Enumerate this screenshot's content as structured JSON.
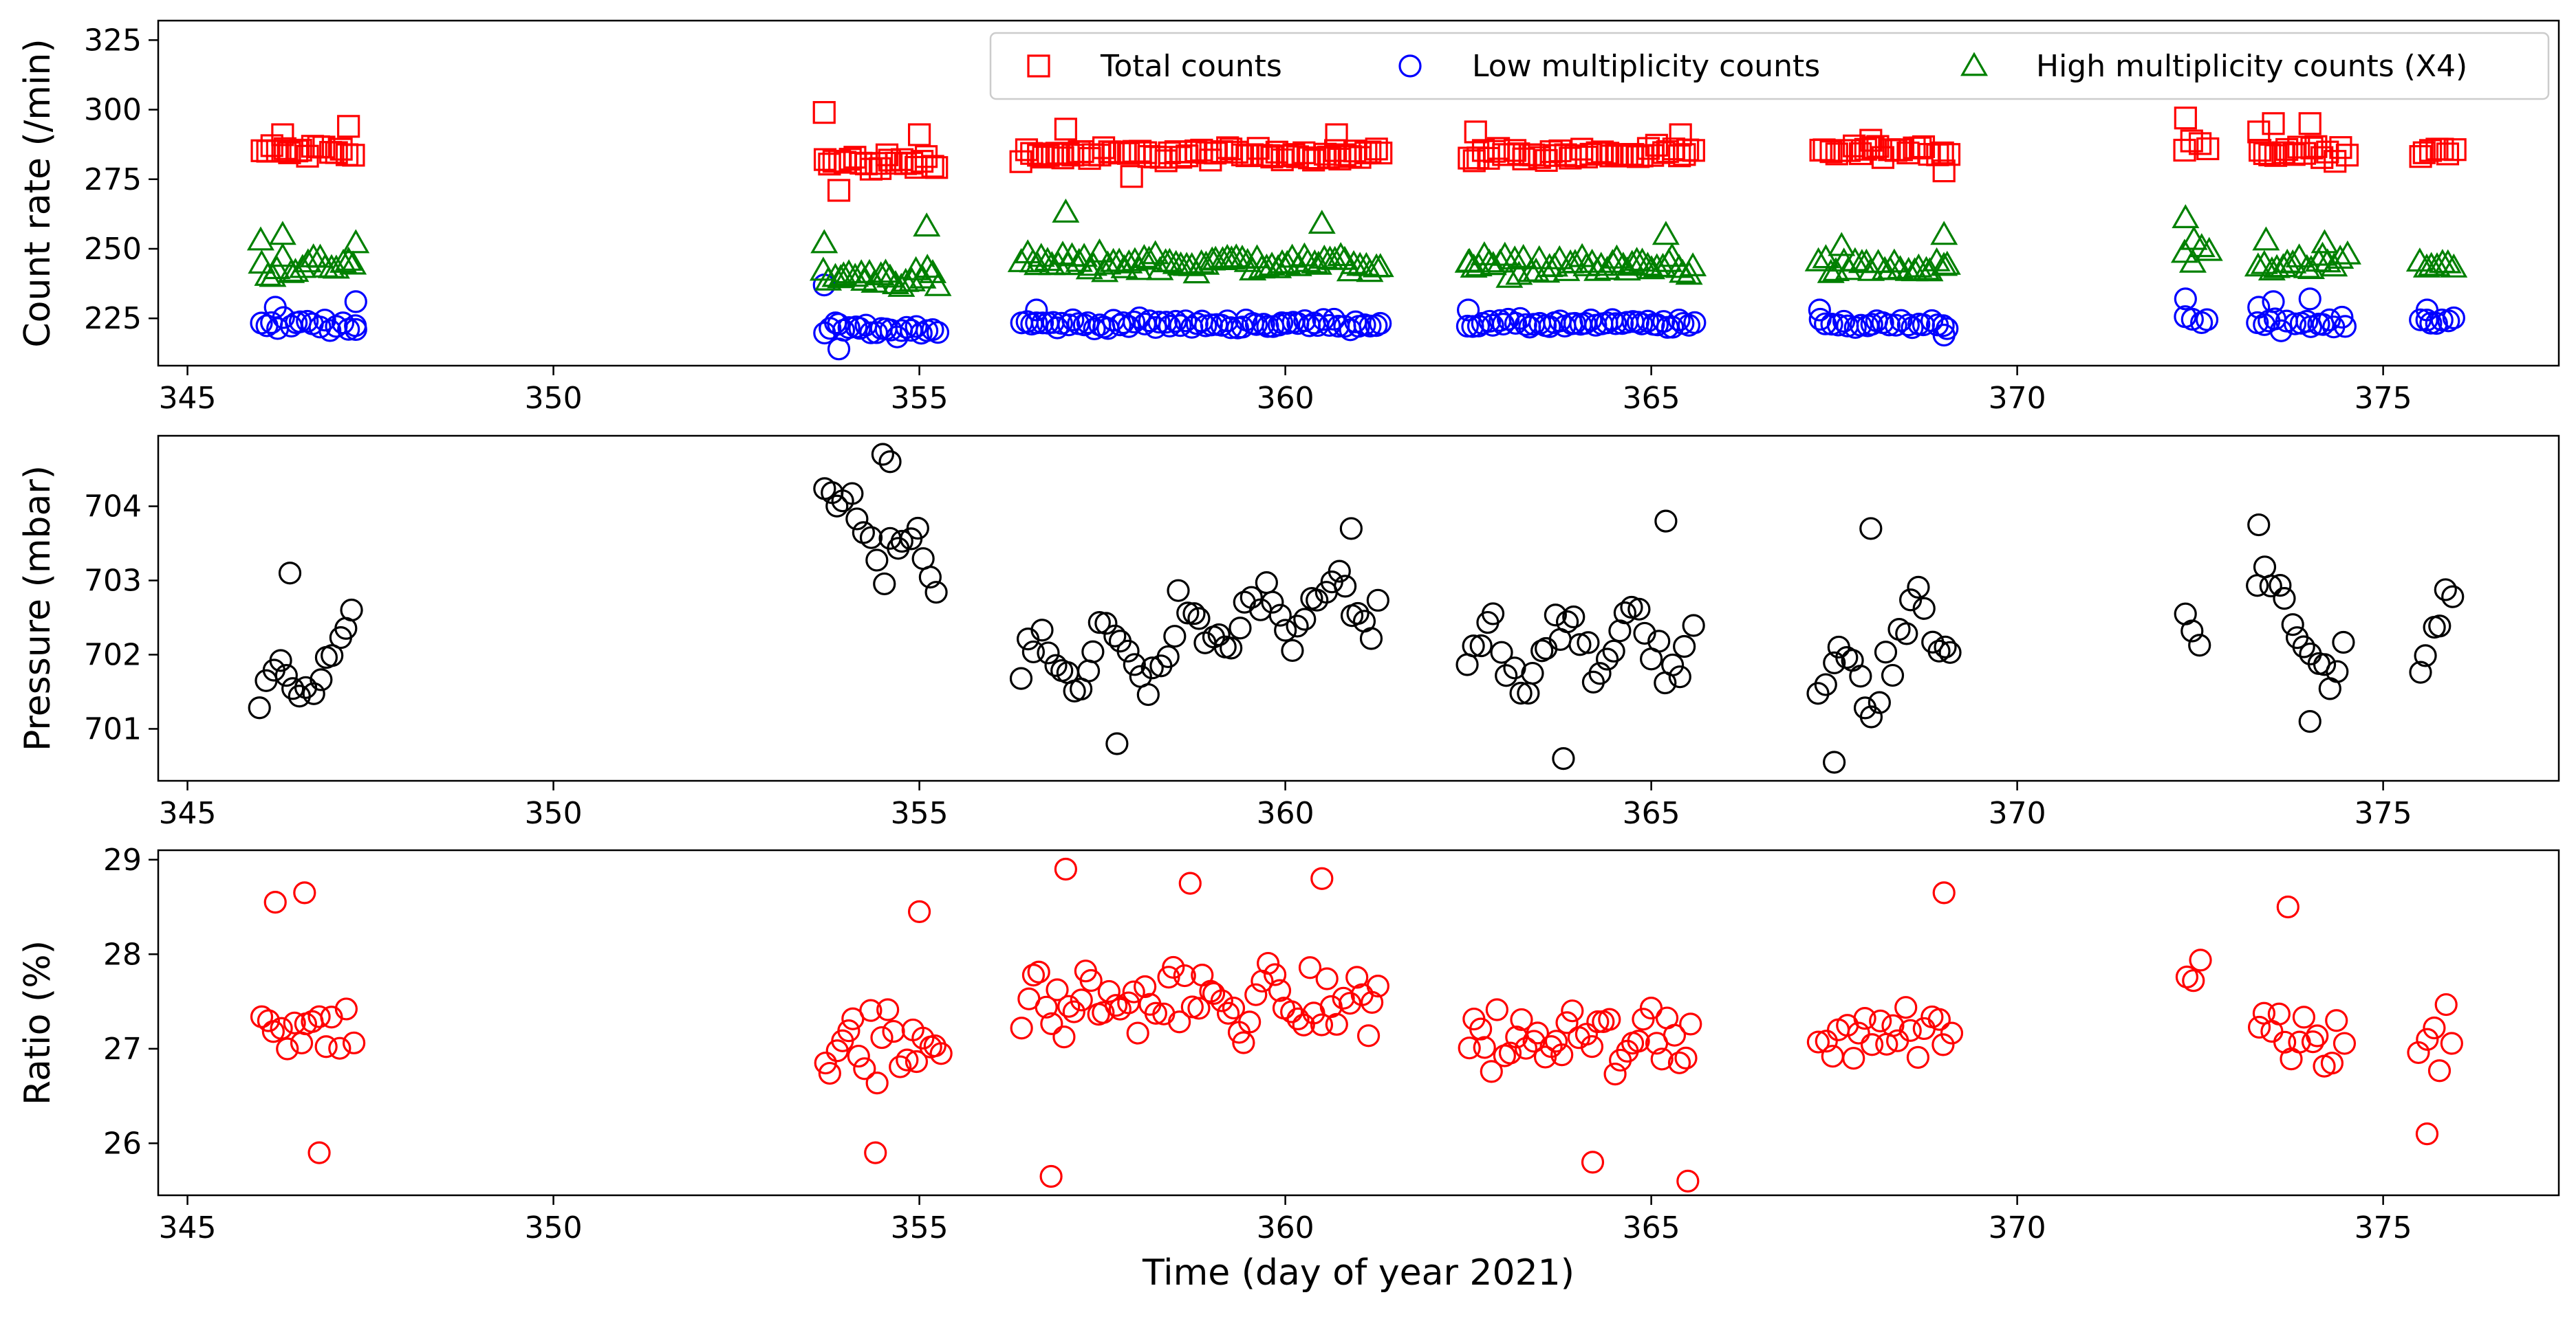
{
  "chart_data": [
    {
      "type": "scatter",
      "ylabel": "Count rate (/min)",
      "xlim": [
        344.6,
        377.4
      ],
      "ylim": [
        208,
        332
      ],
      "xticks": [
        345,
        350,
        355,
        360,
        365,
        370,
        375
      ],
      "yticks": [
        225,
        250,
        275,
        300,
        325
      ],
      "legend": [
        "Total counts",
        "Low multiplicity counts",
        "High multiplicity counts (X4)"
      ],
      "legend_position": "top-right",
      "gaps": [
        [
          347.4,
          353.6
        ],
        [
          369.2,
          372.1
        ]
      ],
      "series": [
        {
          "name": "Total counts",
          "marker": "square",
          "color": "#ff0000",
          "segments": [
            {
              "x": [
                346.0,
                347.3
              ],
              "mean": 285,
              "spread": 4,
              "step": 0.08
            },
            {
              "x": [
                353.7,
                355.3
              ],
              "mean": 281,
              "spread": 5,
              "step": 0.07
            },
            {
              "x": [
                356.4,
                361.3
              ],
              "mean": 284,
              "spread": 3.5,
              "step": 0.07
            },
            {
              "x": [
                362.5,
                365.6
              ],
              "mean": 284,
              "spread": 3.5,
              "step": 0.07
            },
            {
              "x": [
                367.3,
                369.1
              ],
              "mean": 285,
              "spread": 3,
              "step": 0.08
            },
            {
              "x": [
                372.3,
                372.6
              ],
              "mean": 288,
              "spread": 5,
              "step": 0.1
            },
            {
              "x": [
                373.3,
                374.5
              ],
              "mean": 285,
              "spread": 4,
              "step": 0.08
            },
            {
              "x": [
                375.5,
                376.0
              ],
              "mean": 285,
              "spread": 3,
              "step": 0.08
            }
          ],
          "extra_points": [
            [
              346.3,
              291
            ],
            [
              347.2,
              294
            ],
            [
              353.7,
              299
            ],
            [
              353.9,
              271
            ],
            [
              355.0,
              291
            ],
            [
              357.0,
              293
            ],
            [
              357.9,
              276
            ],
            [
              360.7,
              291
            ],
            [
              362.6,
              292
            ],
            [
              365.4,
              291
            ],
            [
              368.0,
              289
            ],
            [
              369.0,
              278
            ],
            [
              372.3,
              297
            ],
            [
              373.3,
              292
            ],
            [
              373.5,
              295
            ],
            [
              374.0,
              295
            ]
          ]
        },
        {
          "name": "Low multiplicity counts",
          "marker": "circle",
          "color": "#0000ff",
          "segments": [
            {
              "x": [
                346.0,
                347.3
              ],
              "mean": 223,
              "spread": 3,
              "step": 0.08
            },
            {
              "x": [
                353.7,
                355.3
              ],
              "mean": 221,
              "spread": 3.5,
              "step": 0.07
            },
            {
              "x": [
                356.4,
                361.3
              ],
              "mean": 223,
              "spread": 2.5,
              "step": 0.07
            },
            {
              "x": [
                362.5,
                365.6
              ],
              "mean": 223,
              "spread": 2.5,
              "step": 0.07
            },
            {
              "x": [
                367.3,
                369.1
              ],
              "mean": 223,
              "spread": 2.5,
              "step": 0.08
            },
            {
              "x": [
                372.3,
                372.6
              ],
              "mean": 225,
              "spread": 4,
              "step": 0.1
            },
            {
              "x": [
                373.3,
                374.5
              ],
              "mean": 223,
              "spread": 3.5,
              "step": 0.08
            },
            {
              "x": [
                375.5,
                376.0
              ],
              "mean": 224,
              "spread": 2.5,
              "step": 0.08
            }
          ],
          "extra_points": [
            [
              346.2,
              229
            ],
            [
              347.3,
              231
            ],
            [
              347.3,
              221
            ],
            [
              353.7,
              237
            ],
            [
              353.9,
              214
            ],
            [
              356.6,
              228
            ],
            [
              362.5,
              228
            ],
            [
              367.3,
              228
            ],
            [
              369.0,
              219
            ],
            [
              372.3,
              232
            ],
            [
              373.3,
              229
            ],
            [
              373.5,
              231
            ],
            [
              374.0,
              232
            ],
            [
              375.6,
              228
            ]
          ]
        },
        {
          "name": "High multiplicity counts (X4)",
          "marker": "triangle",
          "color": "#008000",
          "segments": [
            {
              "x": [
                346.0,
                347.3
              ],
              "mean": 244,
              "spread": 6,
              "step": 0.08
            },
            {
              "x": [
                353.7,
                355.3
              ],
              "mean": 240,
              "spread": 6,
              "step": 0.07
            },
            {
              "x": [
                356.4,
                361.3
              ],
              "mean": 245,
              "spread": 5.5,
              "step": 0.07
            },
            {
              "x": [
                362.5,
                365.6
              ],
              "mean": 244,
              "spread": 5.5,
              "step": 0.07
            },
            {
              "x": [
                367.3,
                369.1
              ],
              "mean": 243,
              "spread": 5,
              "step": 0.08
            },
            {
              "x": [
                372.3,
                372.6
              ],
              "mean": 250,
              "spread": 6,
              "step": 0.1
            },
            {
              "x": [
                373.3,
                374.5
              ],
              "mean": 244,
              "spread": 5.5,
              "step": 0.08
            },
            {
              "x": [
                375.5,
                376.0
              ],
              "mean": 243,
              "spread": 4,
              "step": 0.08
            }
          ],
          "extra_points": [
            [
              346.0,
              253
            ],
            [
              346.3,
              255
            ],
            [
              347.3,
              252
            ],
            [
              353.7,
              252
            ],
            [
              355.1,
              258
            ],
            [
              357.0,
              263
            ],
            [
              360.5,
              259
            ],
            [
              362.5,
              245
            ],
            [
              365.2,
              255
            ],
            [
              367.6,
              251
            ],
            [
              369.0,
              255
            ],
            [
              372.3,
              261
            ],
            [
              372.4,
              245
            ],
            [
              373.4,
              253
            ],
            [
              374.2,
              252
            ]
          ]
        }
      ]
    },
    {
      "type": "scatter",
      "ylabel": "Pressure (mbar)",
      "xlim": [
        344.6,
        377.4
      ],
      "ylim": [
        700.3,
        704.95
      ],
      "xticks": [
        345,
        350,
        355,
        360,
        365,
        370,
        375
      ],
      "yticks": [
        701,
        702,
        703,
        704
      ],
      "gaps": [
        [
          347.4,
          353.6
        ],
        [
          369.2,
          372.1
        ]
      ],
      "series": [
        {
          "name": "Pressure",
          "marker": "circle",
          "color": "#000000",
          "segments": [
            {
              "x": [
                346.0,
                347.3
              ],
              "y": [
                701.3,
                702.2
              ],
              "wave": 0.7,
              "step": 0.09
            },
            {
              "x": [
                353.7,
                355.3
              ],
              "y": [
                704.0,
                703.0
              ],
              "wave": 0.8,
              "step": 0.09
            },
            {
              "x": [
                356.4,
                361.3
              ],
              "y": [
                701.7,
                702.8
              ],
              "wave": 0.8,
              "step": 0.09
            },
            {
              "x": [
                362.5,
                365.6
              ],
              "y": [
                702.0,
                702.2
              ],
              "wave": 0.9,
              "step": 0.09
            },
            {
              "x": [
                367.3,
                369.1
              ],
              "y": [
                701.3,
                702.6
              ],
              "wave": 0.9,
              "step": 0.09
            },
            {
              "x": [
                372.3,
                372.5
              ],
              "y": [
                702.5,
                702.0
              ],
              "wave": 0.4,
              "step": 0.1
            },
            {
              "x": [
                373.3,
                374.5
              ],
              "y": [
                703.0,
                701.6
              ],
              "wave": 0.8,
              "step": 0.09
            },
            {
              "x": [
                375.5,
                376.0
              ],
              "y": [
                701.6,
                702.9
              ],
              "wave": 0.5,
              "step": 0.09
            }
          ],
          "extra_points": [
            [
              346.4,
              703.1
            ],
            [
              354.5,
              704.7
            ],
            [
              354.6,
              704.6
            ],
            [
              357.7,
              700.8
            ],
            [
              360.9,
              703.7
            ],
            [
              363.8,
              700.6
            ],
            [
              365.2,
              703.8
            ],
            [
              367.5,
              700.55
            ],
            [
              368.0,
              703.7
            ],
            [
              373.3,
              703.75
            ],
            [
              374.0,
              701.1
            ]
          ]
        }
      ]
    },
    {
      "type": "scatter",
      "xlabel": "Time (day of year 2021)",
      "ylabel": "Ratio (%)",
      "xlim": [
        344.6,
        377.4
      ],
      "ylim": [
        25.45,
        29.1
      ],
      "xticks": [
        345,
        350,
        355,
        360,
        365,
        370,
        375
      ],
      "yticks": [
        26,
        27,
        28,
        29
      ],
      "gaps": [
        [
          347.4,
          353.6
        ],
        [
          369.2,
          372.1
        ]
      ],
      "series": [
        {
          "name": "Ratio",
          "marker": "circle",
          "color": "#ff0000",
          "segments": [
            {
              "x": [
                346.0,
                347.3
              ],
              "mean": 27.3,
              "spread": 0.55,
              "step": 0.09
            },
            {
              "x": [
                353.7,
                355.3
              ],
              "mean": 27.0,
              "spread": 0.6,
              "step": 0.08
            },
            {
              "x": [
                356.4,
                361.3
              ],
              "mean": 27.5,
              "spread": 0.6,
              "step": 0.08
            },
            {
              "x": [
                362.5,
                365.6
              ],
              "mean": 27.1,
              "spread": 0.6,
              "step": 0.08
            },
            {
              "x": [
                367.3,
                369.1
              ],
              "mean": 27.2,
              "spread": 0.5,
              "step": 0.09
            },
            {
              "x": [
                372.3,
                372.5
              ],
              "mean": 27.9,
              "spread": 0.4,
              "step": 0.1
            },
            {
              "x": [
                373.3,
                374.5
              ],
              "mean": 27.2,
              "spread": 0.55,
              "step": 0.09
            },
            {
              "x": [
                375.5,
                376.0
              ],
              "mean": 27.1,
              "spread": 0.55,
              "step": 0.09
            }
          ],
          "extra_points": [
            [
              346.2,
              28.55
            ],
            [
              346.6,
              28.65
            ],
            [
              346.8,
              25.9
            ],
            [
              354.4,
              25.9
            ],
            [
              355.0,
              28.45
            ],
            [
              357.0,
              28.9
            ],
            [
              356.8,
              25.65
            ],
            [
              358.7,
              28.75
            ],
            [
              360.5,
              28.8
            ],
            [
              365.5,
              25.6
            ],
            [
              364.2,
              25.8
            ],
            [
              369.0,
              28.65
            ],
            [
              373.7,
              28.5
            ],
            [
              375.6,
              26.1
            ]
          ]
        }
      ]
    }
  ]
}
